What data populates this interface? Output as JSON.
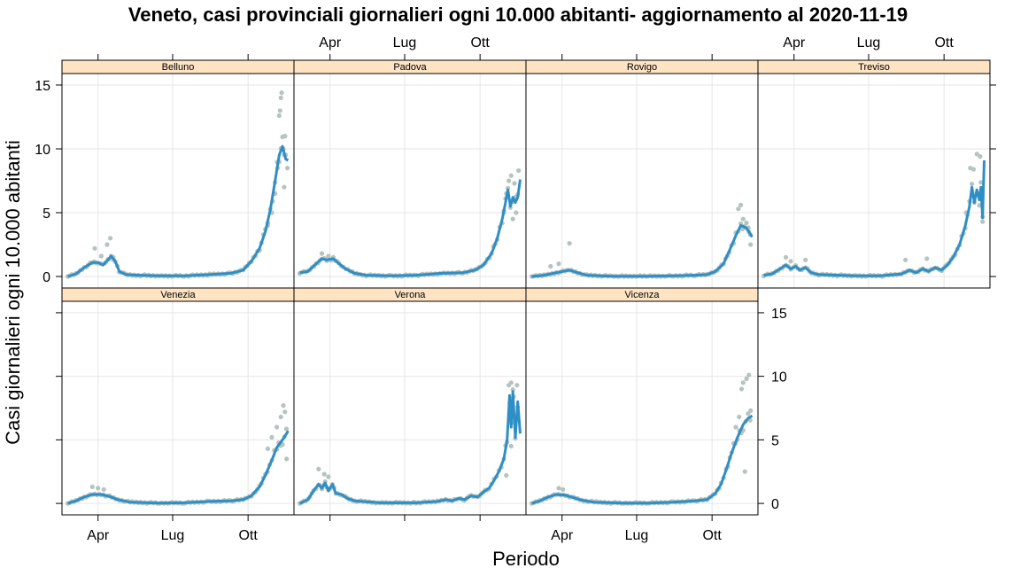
{
  "chart_data": {
    "type": "scatter",
    "title": "Veneto, casi provinciali giornalieri ogni 10.000 abitanti- aggiornamento al 2020-11-19",
    "xlabel": "Periodo",
    "ylabel": "Casi giornalieri ogni 10.000 abitanti",
    "x_ticks": [
      "Apr",
      "Lug",
      "Ott"
    ],
    "x_tick_dates": [
      "2020-04-01",
      "2020-07-01",
      "2020-10-01"
    ],
    "y_ticks": [
      0,
      5,
      10,
      15
    ],
    "ylim": [
      -0.9,
      15.9
    ],
    "xlim": [
      "2020-02-17",
      "2020-11-26"
    ],
    "grid": true,
    "layout": "trellis 4 columns x 2 rows",
    "colors": {
      "points": "#b5c3c1",
      "line": "#2e8ec6",
      "strip": "#ffe4c4",
      "grid": "#e6e6e6"
    },
    "panels": [
      {
        "name": "Belluno",
        "smooth": [
          [
            "2020-02-24",
            0
          ],
          [
            "2020-03-05",
            0.2
          ],
          [
            "2020-03-15",
            0.7
          ],
          [
            "2020-03-25",
            1.1
          ],
          [
            "2020-04-01",
            1.1
          ],
          [
            "2020-04-07",
            0.9
          ],
          [
            "2020-04-13",
            1.3
          ],
          [
            "2020-04-17",
            1.6
          ],
          [
            "2020-04-22",
            1.2
          ],
          [
            "2020-04-27",
            0.4
          ],
          [
            "2020-05-05",
            0.15
          ],
          [
            "2020-05-20",
            0.1
          ],
          [
            "2020-06-15",
            0.05
          ],
          [
            "2020-07-15",
            0.05
          ],
          [
            "2020-08-15",
            0.15
          ],
          [
            "2020-09-10",
            0.25
          ],
          [
            "2020-09-25",
            0.5
          ],
          [
            "2020-10-05",
            1.2
          ],
          [
            "2020-10-15",
            2.2
          ],
          [
            "2020-10-22",
            3.5
          ],
          [
            "2020-10-28",
            5.2
          ],
          [
            "2020-11-03",
            7.5
          ],
          [
            "2020-11-08",
            9.5
          ],
          [
            "2020-11-12",
            10.2
          ],
          [
            "2020-11-16",
            9.2
          ],
          [
            "2020-11-19",
            9.1
          ]
        ],
        "points": [
          [
            "2020-03-28",
            2.2
          ],
          [
            "2020-04-05",
            1.6
          ],
          [
            "2020-04-12",
            2.5
          ],
          [
            "2020-04-16",
            3.0
          ],
          [
            "2020-04-20",
            1.3
          ],
          [
            "2020-10-25",
            4.0
          ],
          [
            "2020-10-30",
            5.0
          ],
          [
            "2020-11-03",
            6.5
          ],
          [
            "2020-11-06",
            8.5
          ],
          [
            "2020-11-08",
            12.6
          ],
          [
            "2020-11-09",
            13.0
          ],
          [
            "2020-11-10",
            14.0
          ],
          [
            "2020-11-11",
            14.4
          ],
          [
            "2020-11-13",
            10.0
          ],
          [
            "2020-11-15",
            11.0
          ],
          [
            "2020-11-14",
            7.0
          ],
          [
            "2020-11-18",
            8.5
          ]
        ]
      },
      {
        "name": "Padova",
        "smooth": [
          [
            "2020-02-24",
            0.3
          ],
          [
            "2020-03-05",
            0.4
          ],
          [
            "2020-03-15",
            1.0
          ],
          [
            "2020-03-22",
            1.4
          ],
          [
            "2020-03-28",
            1.3
          ],
          [
            "2020-04-05",
            1.4
          ],
          [
            "2020-04-12",
            1.0
          ],
          [
            "2020-04-20",
            0.6
          ],
          [
            "2020-05-01",
            0.25
          ],
          [
            "2020-05-15",
            0.1
          ],
          [
            "2020-06-15",
            0.05
          ],
          [
            "2020-07-15",
            0.1
          ],
          [
            "2020-08-15",
            0.25
          ],
          [
            "2020-09-10",
            0.3
          ],
          [
            "2020-09-25",
            0.5
          ],
          [
            "2020-10-05",
            0.9
          ],
          [
            "2020-10-15",
            1.8
          ],
          [
            "2020-10-22",
            3.0
          ],
          [
            "2020-10-28",
            4.5
          ],
          [
            "2020-11-01",
            5.8
          ],
          [
            "2020-11-04",
            6.8
          ],
          [
            "2020-11-07",
            5.5
          ],
          [
            "2020-11-10",
            6.2
          ],
          [
            "2020-11-13",
            5.8
          ],
          [
            "2020-11-16",
            6.2
          ],
          [
            "2020-11-19",
            7.6
          ]
        ],
        "points": [
          [
            "2020-03-22",
            1.8
          ],
          [
            "2020-03-30",
            1.6
          ],
          [
            "2020-10-30",
            5.0
          ],
          [
            "2020-11-02",
            6.5
          ],
          [
            "2020-11-05",
            7.5
          ],
          [
            "2020-11-08",
            7.9
          ],
          [
            "2020-11-12",
            7.3
          ],
          [
            "2020-11-17",
            8.3
          ],
          [
            "2020-11-10",
            4.5
          ],
          [
            "2020-11-14",
            5.0
          ]
        ]
      },
      {
        "name": "Rovigo",
        "smooth": [
          [
            "2020-02-24",
            0
          ],
          [
            "2020-03-10",
            0.1
          ],
          [
            "2020-03-25",
            0.3
          ],
          [
            "2020-04-10",
            0.5
          ],
          [
            "2020-04-20",
            0.3
          ],
          [
            "2020-05-01",
            0.1
          ],
          [
            "2020-06-01",
            0.02
          ],
          [
            "2020-07-15",
            0.02
          ],
          [
            "2020-08-15",
            0.05
          ],
          [
            "2020-09-10",
            0.1
          ],
          [
            "2020-09-25",
            0.15
          ],
          [
            "2020-10-05",
            0.4
          ],
          [
            "2020-10-15",
            1.0
          ],
          [
            "2020-10-22",
            2.0
          ],
          [
            "2020-10-30",
            3.2
          ],
          [
            "2020-11-05",
            4.0
          ],
          [
            "2020-11-12",
            3.8
          ],
          [
            "2020-11-19",
            3.1
          ]
        ],
        "points": [
          [
            "2020-03-18",
            0.8
          ],
          [
            "2020-03-28",
            1.0
          ],
          [
            "2020-04-10",
            2.6
          ],
          [
            "2020-11-02",
            5.3
          ],
          [
            "2020-11-05",
            5.6
          ],
          [
            "2020-11-08",
            4.5
          ],
          [
            "2020-11-12",
            4.2
          ],
          [
            "2020-11-15",
            3.5
          ],
          [
            "2020-11-17",
            2.5
          ]
        ]
      },
      {
        "name": "Treviso",
        "smooth": [
          [
            "2020-02-24",
            0.1
          ],
          [
            "2020-03-05",
            0.2
          ],
          [
            "2020-03-15",
            0.6
          ],
          [
            "2020-03-22",
            0.9
          ],
          [
            "2020-03-28",
            0.6
          ],
          [
            "2020-04-03",
            0.8
          ],
          [
            "2020-04-08",
            0.5
          ],
          [
            "2020-04-15",
            0.7
          ],
          [
            "2020-04-22",
            0.3
          ],
          [
            "2020-05-01",
            0.15
          ],
          [
            "2020-06-15",
            0.05
          ],
          [
            "2020-07-15",
            0.05
          ],
          [
            "2020-08-10",
            0.2
          ],
          [
            "2020-08-20",
            0.5
          ],
          [
            "2020-08-28",
            0.3
          ],
          [
            "2020-09-05",
            0.6
          ],
          [
            "2020-09-12",
            0.4
          ],
          [
            "2020-09-20",
            0.7
          ],
          [
            "2020-09-28",
            0.5
          ],
          [
            "2020-10-05",
            0.9
          ],
          [
            "2020-10-12",
            1.5
          ],
          [
            "2020-10-20",
            2.5
          ],
          [
            "2020-10-27",
            4.0
          ],
          [
            "2020-11-01",
            5.5
          ],
          [
            "2020-11-04",
            7.0
          ],
          [
            "2020-11-07",
            5.8
          ],
          [
            "2020-11-10",
            6.8
          ],
          [
            "2020-11-13",
            6.0
          ],
          [
            "2020-11-15",
            7.0
          ],
          [
            "2020-11-17",
            4.6
          ],
          [
            "2020-11-19",
            9.1
          ]
        ],
        "points": [
          [
            "2020-03-22",
            1.5
          ],
          [
            "2020-03-28",
            1.2
          ],
          [
            "2020-04-15",
            1.3
          ],
          [
            "2020-08-15",
            1.3
          ],
          [
            "2020-09-10",
            1.4
          ],
          [
            "2020-10-28",
            5.0
          ],
          [
            "2020-11-02",
            8.5
          ],
          [
            "2020-11-06",
            8.4
          ],
          [
            "2020-11-10",
            9.6
          ],
          [
            "2020-11-14",
            9.4
          ],
          [
            "2020-11-17",
            4.3
          ]
        ]
      },
      {
        "name": "Venezia",
        "smooth": [
          [
            "2020-02-24",
            0
          ],
          [
            "2020-03-05",
            0.2
          ],
          [
            "2020-03-15",
            0.5
          ],
          [
            "2020-03-25",
            0.7
          ],
          [
            "2020-04-05",
            0.7
          ],
          [
            "2020-04-15",
            0.55
          ],
          [
            "2020-04-25",
            0.3
          ],
          [
            "2020-05-10",
            0.1
          ],
          [
            "2020-06-15",
            0.02
          ],
          [
            "2020-07-15",
            0.05
          ],
          [
            "2020-08-15",
            0.15
          ],
          [
            "2020-09-10",
            0.2
          ],
          [
            "2020-09-25",
            0.3
          ],
          [
            "2020-10-05",
            0.6
          ],
          [
            "2020-10-15",
            1.3
          ],
          [
            "2020-10-22",
            2.2
          ],
          [
            "2020-10-30",
            3.4
          ],
          [
            "2020-11-05",
            4.4
          ],
          [
            "2020-11-12",
            5.0
          ],
          [
            "2020-11-19",
            5.7
          ]
        ],
        "points": [
          [
            "2020-03-25",
            1.3
          ],
          [
            "2020-04-01",
            1.2
          ],
          [
            "2020-04-08",
            1.1
          ],
          [
            "2020-10-25",
            4.3
          ],
          [
            "2020-10-30",
            5.2
          ],
          [
            "2020-11-05",
            6.0
          ],
          [
            "2020-11-10",
            6.8
          ],
          [
            "2020-11-13",
            7.7
          ],
          [
            "2020-11-15",
            7.2
          ],
          [
            "2020-11-17",
            3.5
          ]
        ]
      },
      {
        "name": "Verona",
        "smooth": [
          [
            "2020-02-24",
            0
          ],
          [
            "2020-03-05",
            0.3
          ],
          [
            "2020-03-12",
            1.0
          ],
          [
            "2020-03-18",
            1.5
          ],
          [
            "2020-03-22",
            1.2
          ],
          [
            "2020-03-26",
            1.6
          ],
          [
            "2020-03-30",
            1.0
          ],
          [
            "2020-04-04",
            1.5
          ],
          [
            "2020-04-08",
            0.8
          ],
          [
            "2020-04-15",
            0.7
          ],
          [
            "2020-04-22",
            0.4
          ],
          [
            "2020-05-01",
            0.2
          ],
          [
            "2020-06-01",
            0.05
          ],
          [
            "2020-07-15",
            0.05
          ],
          [
            "2020-08-10",
            0.15
          ],
          [
            "2020-08-20",
            0.3
          ],
          [
            "2020-08-28",
            0.2
          ],
          [
            "2020-09-05",
            0.4
          ],
          [
            "2020-09-12",
            0.3
          ],
          [
            "2020-09-20",
            0.6
          ],
          [
            "2020-09-28",
            0.5
          ],
          [
            "2020-10-05",
            0.9
          ],
          [
            "2020-10-12",
            1.2
          ],
          [
            "2020-10-18",
            1.8
          ],
          [
            "2020-10-24",
            2.5
          ],
          [
            "2020-10-30",
            3.5
          ],
          [
            "2020-11-03",
            5.0
          ],
          [
            "2020-11-06",
            8.5
          ],
          [
            "2020-11-08",
            6.0
          ],
          [
            "2020-11-10",
            8.8
          ],
          [
            "2020-11-13",
            5.2
          ],
          [
            "2020-11-16",
            8.0
          ],
          [
            "2020-11-19",
            5.5
          ]
        ],
        "points": [
          [
            "2020-03-18",
            2.7
          ],
          [
            "2020-03-25",
            2.3
          ],
          [
            "2020-03-30",
            2.1
          ],
          [
            "2020-11-05",
            9.3
          ],
          [
            "2020-11-08",
            9.5
          ],
          [
            "2020-11-11",
            8.4
          ],
          [
            "2020-11-15",
            9.3
          ],
          [
            "2020-11-02",
            2.2
          ],
          [
            "2020-11-08",
            4.5
          ]
        ]
      },
      {
        "name": "Vicenza",
        "smooth": [
          [
            "2020-02-24",
            0
          ],
          [
            "2020-03-05",
            0.2
          ],
          [
            "2020-03-15",
            0.5
          ],
          [
            "2020-03-25",
            0.7
          ],
          [
            "2020-04-05",
            0.65
          ],
          [
            "2020-04-15",
            0.45
          ],
          [
            "2020-04-25",
            0.25
          ],
          [
            "2020-05-10",
            0.1
          ],
          [
            "2020-06-15",
            0.02
          ],
          [
            "2020-07-15",
            0.03
          ],
          [
            "2020-08-15",
            0.1
          ],
          [
            "2020-09-10",
            0.2
          ],
          [
            "2020-09-25",
            0.3
          ],
          [
            "2020-10-05",
            0.8
          ],
          [
            "2020-10-12",
            1.5
          ],
          [
            "2020-10-18",
            2.6
          ],
          [
            "2020-10-25",
            4.0
          ],
          [
            "2020-11-01",
            5.2
          ],
          [
            "2020-11-08",
            6.2
          ],
          [
            "2020-11-14",
            6.7
          ],
          [
            "2020-11-19",
            6.9
          ]
        ],
        "points": [
          [
            "2020-03-28",
            1.2
          ],
          [
            "2020-04-02",
            1.1
          ],
          [
            "2020-10-30",
            6.0
          ],
          [
            "2020-11-03",
            6.8
          ],
          [
            "2020-11-06",
            9.0
          ],
          [
            "2020-11-08",
            9.5
          ],
          [
            "2020-11-12",
            9.8
          ],
          [
            "2020-11-15",
            10.1
          ],
          [
            "2020-11-17",
            7.3
          ],
          [
            "2020-11-10",
            2.5
          ]
        ]
      }
    ]
  }
}
